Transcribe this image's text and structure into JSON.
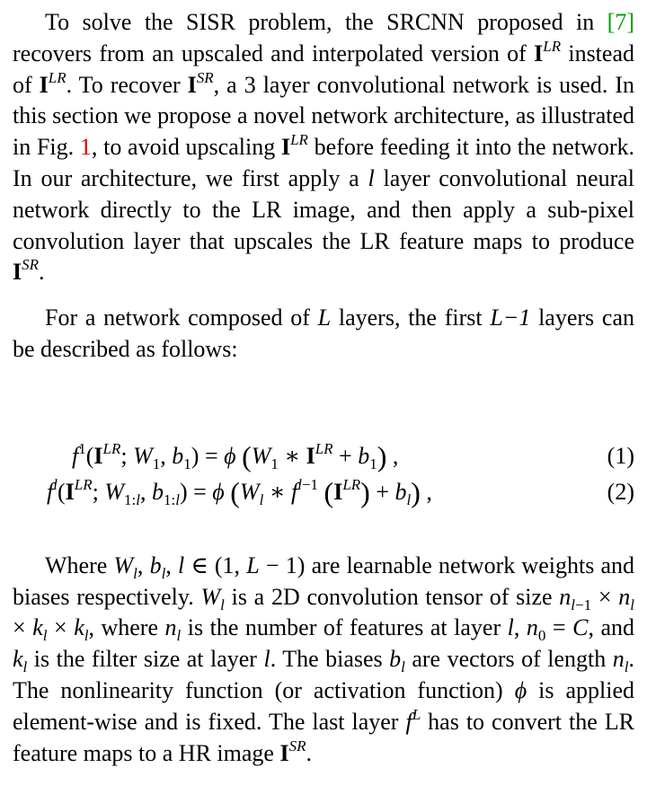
{
  "paragraph1": {
    "t1": "To solve the SISR problem, the SRCNN proposed in ",
    "ref": "[7]",
    "t2": " recovers from an upscaled and interpolated version of ",
    "t3": " instead of ",
    "t4": ". To recover ",
    "t5": ", a 3 layer convolutional network is used. In this section we propose a novel network architecture, as illustrated in Fig. ",
    "figref": "1",
    "t6": ", to avoid upscaling ",
    "t7": " before feeding it into the network. In our architecture, we first apply a ",
    "l": "l",
    "t8": " layer convolutional neural network directly to the LR image, and then apply a sub-pixel convolution layer that upscales the LR feature maps to produce ",
    "t9": "."
  },
  "paragraph2": {
    "t1": "For a network composed of ",
    "L": "L",
    "t2": " layers, the first ",
    "Lm1": "L−1",
    "t3": " layers can be described as follows:"
  },
  "equations": {
    "eq1_number": "(1)",
    "eq2_number": "(2)"
  },
  "paragraph3": {
    "t1": "Where ",
    "vars": "W",
    "t2": " are learnable network weights and biases respectively. ",
    "t3": " is a 2D convolution tensor of size ",
    "t4": ", where ",
    "t5": " is the number of features at layer ",
    "t6": ", and ",
    "t7": " is the filter size at layer ",
    "t8": ". The biases ",
    "t9": " are vectors of length ",
    "t10": ". The nonlinearity function (or activation function) ",
    "t11": " is applied element-wise and is fixed. The last layer ",
    "t12": " has to convert the LR feature maps to a HR image ",
    "t13": "."
  },
  "symbols": {
    "I": "I",
    "LR": "LR",
    "SR": "SR"
  }
}
